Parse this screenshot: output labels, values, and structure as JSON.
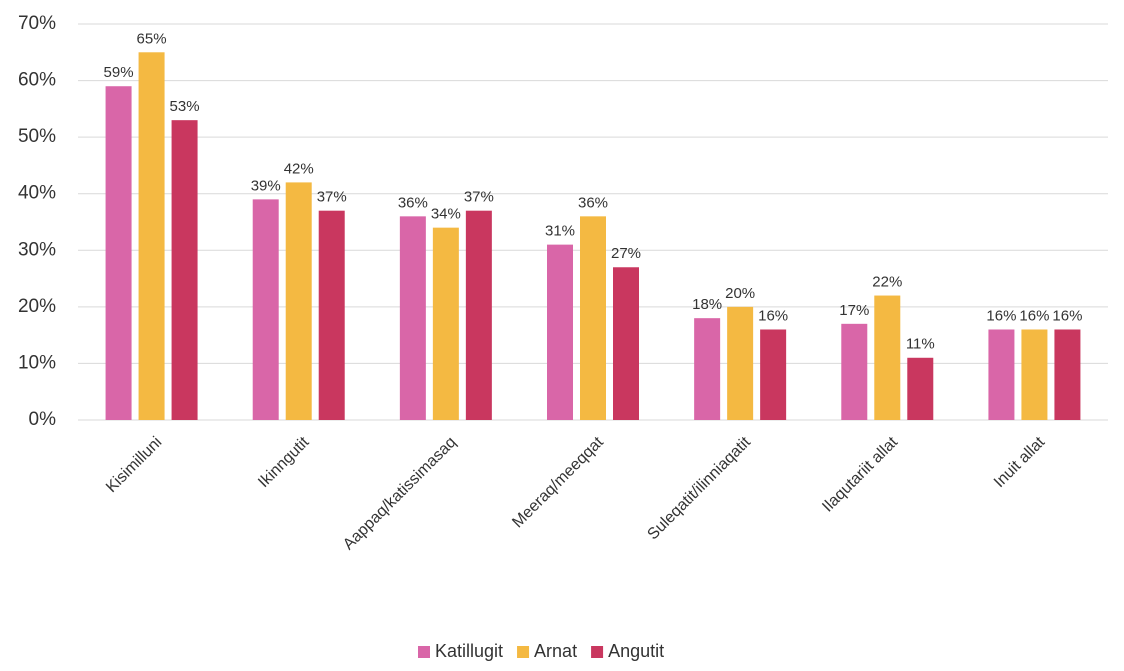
{
  "chart_data": {
    "type": "bar",
    "categories": [
      "Kisimilluni",
      "Ikinngutit",
      "Aappaq/katissimasaq",
      "Meeraq/meeqqat",
      "Suleqatit/ilinniaqatit",
      "Ilaqutariit allat",
      "Inuit allat"
    ],
    "series": [
      {
        "name": "Katillugit",
        "color": "#d966a8",
        "values": [
          59,
          39,
          36,
          31,
          18,
          17,
          16
        ],
        "value_labels": [
          "59%",
          "39%",
          "36%",
          "31%",
          "18%",
          "17%",
          "16%"
        ]
      },
      {
        "name": "Arnat",
        "color": "#f4b942",
        "values": [
          65,
          42,
          34,
          36,
          20,
          22,
          16
        ],
        "value_labels": [
          "65%",
          "42%",
          "34%",
          "36%",
          "20%",
          "22%",
          "16%"
        ]
      },
      {
        "name": "Angutit",
        "color": "#c9375f",
        "values": [
          53,
          37,
          37,
          27,
          16,
          11,
          16
        ],
        "value_labels": [
          "53%",
          "37%",
          "37%",
          "27%",
          "16%",
          "11%",
          "16%"
        ]
      }
    ],
    "ylim": [
      0,
      70
    ],
    "yticks": [
      {
        "value": 0,
        "label": "0%"
      },
      {
        "value": 10,
        "label": "10%"
      },
      {
        "value": 20,
        "label": "20%"
      },
      {
        "value": 30,
        "label": "30%"
      },
      {
        "value": 40,
        "label": "40%"
      },
      {
        "value": 50,
        "label": "50%"
      },
      {
        "value": 60,
        "label": "60%"
      },
      {
        "value": 70,
        "label": "70%"
      }
    ],
    "grid": true,
    "legend": "bottom"
  }
}
